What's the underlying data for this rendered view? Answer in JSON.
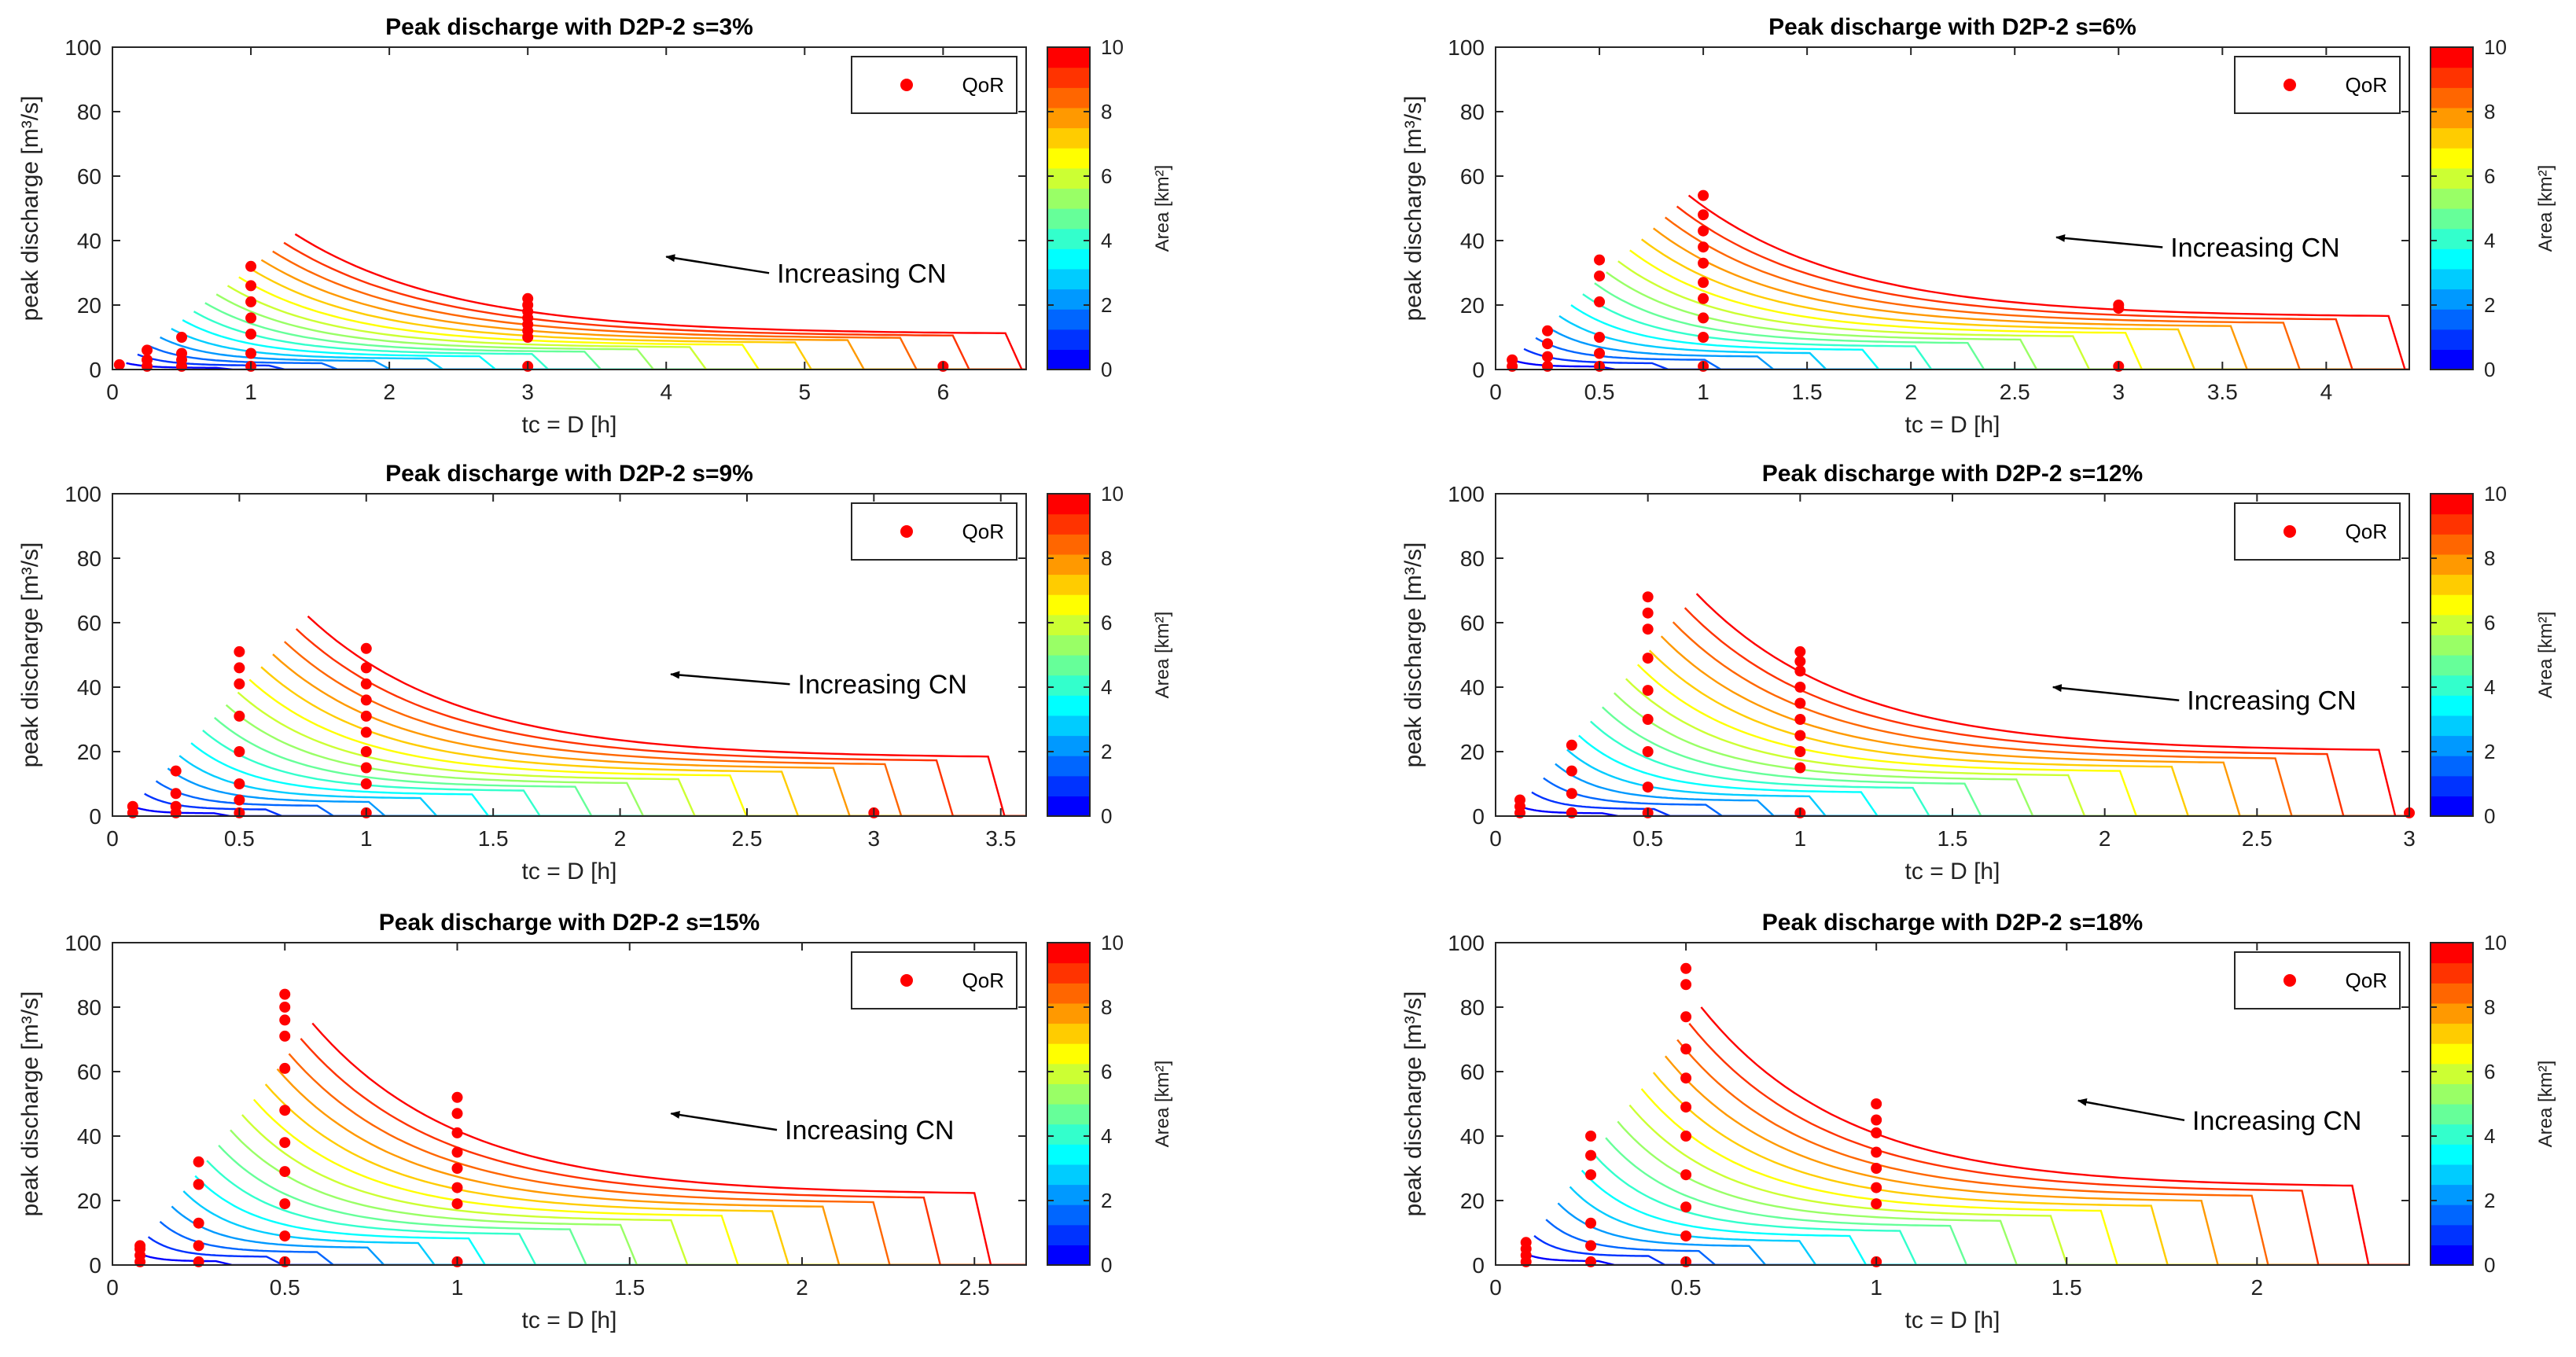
{
  "colors": {
    "background": "#ffffff",
    "axis": "#262626",
    "marker": "#ff0000",
    "arrow": "#000000",
    "colormap": [
      "#0000ff",
      "#0033ff",
      "#0066ff",
      "#0099ff",
      "#00ccff",
      "#00ffff",
      "#33ffcc",
      "#66ff99",
      "#99ff66",
      "#ccff33",
      "#ffff00",
      "#ffcc00",
      "#ff9900",
      "#ff6600",
      "#ff3300",
      "#ff0000"
    ]
  },
  "chart_data": [
    {
      "type": "line",
      "title": "Peak discharge with D2P-2 s=3%",
      "xlabel": "tc = D [h]",
      "ylabel": "peak discharge [m³/s]",
      "xlim": [
        0,
        6.6
      ],
      "ylim": [
        0,
        100
      ],
      "xticks": [
        0,
        1,
        2,
        3,
        4,
        5,
        6
      ],
      "xtick_labels": [
        "0",
        "1",
        "2",
        "3",
        "4",
        "5",
        "6"
      ],
      "yticks": [
        0,
        20,
        40,
        60,
        80,
        100
      ],
      "ytick_labels": [
        "0",
        "20",
        "40",
        "60",
        "80",
        "100"
      ],
      "curves": {
        "count": 16,
        "x_min_first": 0.1,
        "x_min_last": 1.32,
        "x_max_first": 0.75,
        "x_max_last": 6.45,
        "peak_first": 2,
        "peak_last": 42,
        "plateau_ratio": 0.26,
        "xend": 6.6
      },
      "qor_points": [
        {
          "x": 0.05,
          "y": [
            1.5
          ]
        },
        {
          "x": 0.25,
          "y": [
            1,
            3,
            6
          ]
        },
        {
          "x": 0.5,
          "y": [
            1,
            3,
            5,
            10
          ]
        },
        {
          "x": 1.0,
          "y": [
            1,
            5,
            11,
            16,
            21,
            26,
            32
          ]
        },
        {
          "x": 3.0,
          "y": [
            1,
            10,
            12,
            14,
            16,
            18,
            20,
            22
          ]
        },
        {
          "x": 6.0,
          "y": [
            1
          ]
        }
      ],
      "legend": {
        "label": "QoR",
        "location": "top-right"
      },
      "annotation": {
        "text": "Increasing CN",
        "xy": [
          4.0,
          35
        ],
        "xytext": [
          4.8,
          27
        ]
      },
      "colorbar": {
        "label": "Area [km²]",
        "range": [
          0,
          10
        ],
        "ticks": [
          "0",
          "2",
          "4",
          "6",
          "8",
          "10"
        ]
      }
    },
    {
      "type": "line",
      "title": "Peak discharge with D2P-2 s=6%",
      "xlabel": "tc = D [h]",
      "ylabel": "peak discharge [m³/s]",
      "xlim": [
        0,
        4.4
      ],
      "ylim": [
        0,
        100
      ],
      "xticks": [
        0,
        0.5,
        1,
        1.5,
        2,
        2.5,
        3,
        3.5,
        4
      ],
      "xtick_labels": [
        "0",
        "0.5",
        "1",
        "1.5",
        "2",
        "2.5",
        "3",
        "3.5",
        "4"
      ],
      "yticks": [
        0,
        20,
        40,
        60,
        80,
        100
      ],
      "ytick_labels": [
        "0",
        "20",
        "40",
        "60",
        "80",
        "100"
      ],
      "curves": {
        "count": 16,
        "x_min_first": 0.08,
        "x_min_last": 0.93,
        "x_max_first": 0.5,
        "x_max_last": 4.3,
        "peak_first": 3,
        "peak_last": 54,
        "plateau_ratio": 0.3,
        "xend": 4.4
      },
      "qor_points": [
        {
          "x": 0.08,
          "y": [
            1,
            3
          ]
        },
        {
          "x": 0.25,
          "y": [
            1,
            4,
            8,
            12
          ]
        },
        {
          "x": 0.5,
          "y": [
            1,
            5,
            10,
            21,
            29,
            34
          ]
        },
        {
          "x": 1.0,
          "y": [
            1,
            10,
            16,
            22,
            27,
            33,
            38,
            43,
            48,
            54
          ]
        },
        {
          "x": 3.0,
          "y": [
            1,
            19,
            20
          ]
        }
      ],
      "legend": {
        "label": "QoR",
        "location": "top-right"
      },
      "annotation": {
        "text": "Increasing CN",
        "xy": [
          2.7,
          41
        ],
        "xytext": [
          3.25,
          35
        ]
      },
      "colorbar": {
        "label": "Area [km²]",
        "range": [
          0,
          10
        ],
        "ticks": [
          "0",
          "2",
          "4",
          "6",
          "8",
          "10"
        ]
      }
    },
    {
      "type": "line",
      "title": "Peak discharge with D2P-2 s=9%",
      "xlabel": "tc = D [h]",
      "ylabel": "peak discharge [m³/s]",
      "xlim": [
        0,
        3.6
      ],
      "ylim": [
        0,
        100
      ],
      "xticks": [
        0,
        0.5,
        1,
        1.5,
        2,
        2.5,
        3,
        3.5
      ],
      "xtick_labels": [
        "0",
        "0.5",
        "1",
        "1.5",
        "2",
        "2.5",
        "3",
        "3.5"
      ],
      "yticks": [
        0,
        20,
        40,
        60,
        80,
        100
      ],
      "ytick_labels": [
        "0",
        "20",
        "40",
        "60",
        "80",
        "100"
      ],
      "curves": {
        "count": 16,
        "x_min_first": 0.08,
        "x_min_last": 0.77,
        "x_max_first": 0.4,
        "x_max_last": 3.45,
        "peak_first": 3,
        "peak_last": 62,
        "plateau_ratio": 0.29,
        "xend": 3.6
      },
      "qor_points": [
        {
          "x": 0.08,
          "y": [
            1,
            3
          ]
        },
        {
          "x": 0.25,
          "y": [
            1,
            3,
            7,
            14
          ]
        },
        {
          "x": 0.5,
          "y": [
            1,
            5,
            10,
            20,
            31,
            41,
            46,
            51
          ]
        },
        {
          "x": 1.0,
          "y": [
            1,
            10,
            15,
            20,
            26,
            31,
            36,
            41,
            46,
            52
          ]
        },
        {
          "x": 3.0,
          "y": [
            1
          ]
        }
      ],
      "legend": {
        "label": "QoR",
        "location": "top-right"
      },
      "annotation": {
        "text": "Increasing CN",
        "xy": [
          2.2,
          44
        ],
        "xytext": [
          2.7,
          38
        ]
      },
      "colorbar": {
        "label": "Area [km²]",
        "range": [
          0,
          10
        ],
        "ticks": [
          "0",
          "2",
          "4",
          "6",
          "8",
          "10"
        ]
      }
    },
    {
      "type": "line",
      "title": "Peak discharge with D2P-2 s=12%",
      "xlabel": "tc = D [h]",
      "ylabel": "peak discharge [m³/s]",
      "xlim": [
        0,
        3.0
      ],
      "ylim": [
        0,
        100
      ],
      "xticks": [
        0,
        0.5,
        1,
        1.5,
        2,
        2.5,
        3
      ],
      "xtick_labels": [
        "0",
        "0.5",
        "1",
        "1.5",
        "2",
        "2.5",
        "3"
      ],
      "yticks": [
        0,
        20,
        40,
        60,
        80,
        100
      ],
      "ytick_labels": [
        "0",
        "20",
        "40",
        "60",
        "80",
        "100"
      ],
      "curves": {
        "count": 16,
        "x_min_first": 0.08,
        "x_min_last": 0.66,
        "x_max_first": 0.35,
        "x_max_last": 2.9,
        "peak_first": 3,
        "peak_last": 69,
        "plateau_ratio": 0.29,
        "xend": 3.0
      },
      "qor_points": [
        {
          "x": 0.08,
          "y": [
            1,
            3,
            5
          ]
        },
        {
          "x": 0.25,
          "y": [
            1,
            7,
            14,
            22
          ]
        },
        {
          "x": 0.5,
          "y": [
            1,
            9,
            20,
            30,
            39,
            49,
            58,
            63,
            68
          ]
        },
        {
          "x": 1.0,
          "y": [
            1,
            15,
            20,
            25,
            30,
            35,
            40,
            45,
            48,
            51
          ]
        },
        {
          "x": 3.0,
          "y": [
            1
          ]
        }
      ],
      "legend": {
        "label": "QoR",
        "location": "top-right"
      },
      "annotation": {
        "text": "Increasing CN",
        "xy": [
          1.83,
          40
        ],
        "xytext": [
          2.27,
          33
        ]
      },
      "colorbar": {
        "label": "Area [km²]",
        "range": [
          0,
          10
        ],
        "ticks": [
          "0",
          "2",
          "4",
          "6",
          "8",
          "10"
        ]
      }
    },
    {
      "type": "line",
      "title": "Peak discharge with D2P-2 s=15%",
      "xlabel": "tc = D [h]",
      "ylabel": "peak discharge [m³/s]",
      "xlim": [
        0,
        2.65
      ],
      "ylim": [
        0,
        100
      ],
      "xticks": [
        0,
        0.5,
        1,
        1.5,
        2,
        2.5
      ],
      "xtick_labels": [
        "0",
        "0.5",
        "1",
        "1.5",
        "2",
        "2.5"
      ],
      "yticks": [
        0,
        20,
        40,
        60,
        80,
        100
      ],
      "ytick_labels": [
        "0",
        "20",
        "40",
        "60",
        "80",
        "100"
      ],
      "curves": {
        "count": 16,
        "x_min_first": 0.07,
        "x_min_last": 0.58,
        "x_max_first": 0.3,
        "x_max_last": 2.5,
        "peak_first": 4,
        "peak_last": 75,
        "plateau_ratio": 0.29,
        "xend": 2.65
      },
      "qor_points": [
        {
          "x": 0.08,
          "y": [
            1,
            3,
            5,
            6
          ]
        },
        {
          "x": 0.25,
          "y": [
            1,
            6,
            13,
            25,
            32
          ]
        },
        {
          "x": 0.5,
          "y": [
            1,
            9,
            19,
            29,
            38,
            48,
            61,
            71,
            76,
            80,
            84
          ]
        },
        {
          "x": 1.0,
          "y": [
            1,
            19,
            24,
            30,
            35,
            41,
            47,
            52
          ]
        }
      ],
      "legend": {
        "label": "QoR",
        "location": "top-right"
      },
      "annotation": {
        "text": "Increasing CN",
        "xy": [
          1.62,
          47
        ],
        "xytext": [
          1.95,
          39
        ]
      },
      "colorbar": {
        "label": "Area [km²]",
        "range": [
          0,
          10
        ],
        "ticks": [
          "0",
          "2",
          "4",
          "6",
          "8",
          "10"
        ]
      }
    },
    {
      "type": "line",
      "title": "Peak discharge with D2P-2 s=18%",
      "xlabel": "tc = D [h]",
      "ylabel": "peak discharge [m³/s]",
      "xlim": [
        0,
        2.4
      ],
      "ylim": [
        0,
        100
      ],
      "xticks": [
        0,
        0.5,
        1,
        1.5,
        2
      ],
      "xtick_labels": [
        "0",
        "0.5",
        "1",
        "1.5",
        "2"
      ],
      "yticks": [
        0,
        20,
        40,
        60,
        80,
        100
      ],
      "ytick_labels": [
        "0",
        "20",
        "40",
        "60",
        "80",
        "100"
      ],
      "curves": {
        "count": 16,
        "x_min_first": 0.07,
        "x_min_last": 0.54,
        "x_max_first": 0.27,
        "x_max_last": 2.25,
        "peak_first": 4,
        "peak_last": 80,
        "plateau_ratio": 0.3,
        "xend": 2.4
      },
      "qor_points": [
        {
          "x": 0.08,
          "y": [
            1,
            3,
            5,
            7
          ]
        },
        {
          "x": 0.25,
          "y": [
            1,
            6,
            13,
            28,
            34,
            40
          ]
        },
        {
          "x": 0.5,
          "y": [
            1,
            9,
            18,
            28,
            40,
            49,
            58,
            67,
            77,
            87,
            92
          ]
        },
        {
          "x": 1.0,
          "y": [
            1,
            19,
            24,
            30,
            35,
            41,
            45,
            50
          ]
        }
      ],
      "legend": {
        "label": "QoR",
        "location": "top-right"
      },
      "annotation": {
        "text": "Increasing CN",
        "xy": [
          1.53,
          51
        ],
        "xytext": [
          1.83,
          42
        ]
      },
      "colorbar": {
        "label": "Area [km²]",
        "range": [
          0,
          10
        ],
        "ticks": [
          "0",
          "2",
          "4",
          "6",
          "8",
          "10"
        ]
      }
    }
  ]
}
